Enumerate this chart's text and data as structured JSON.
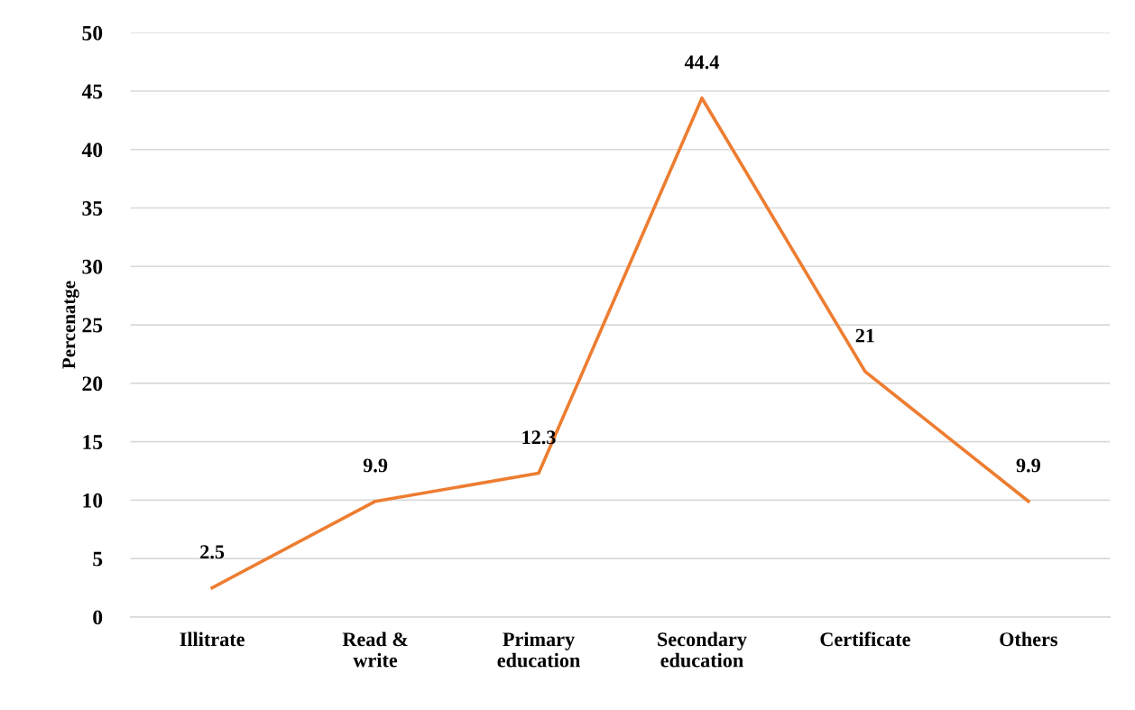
{
  "chart_data": {
    "type": "line",
    "ylabel": "Percenatge",
    "categories": [
      "Illitrate",
      "Read & write",
      "Primary education",
      "Secondary education",
      "Certificate",
      "Others"
    ],
    "series": [
      {
        "color": "#ed7d31",
        "values": [
          2.5,
          9.9,
          12.3,
          44.4,
          21,
          9.9
        ]
      }
    ],
    "ylim": [
      0,
      50
    ],
    "yticks": [
      0,
      5,
      10,
      15,
      20,
      25,
      30,
      35,
      40,
      45,
      50
    ],
    "grid": "y",
    "data_labels": true,
    "line_style": "solid",
    "marker": "none"
  }
}
